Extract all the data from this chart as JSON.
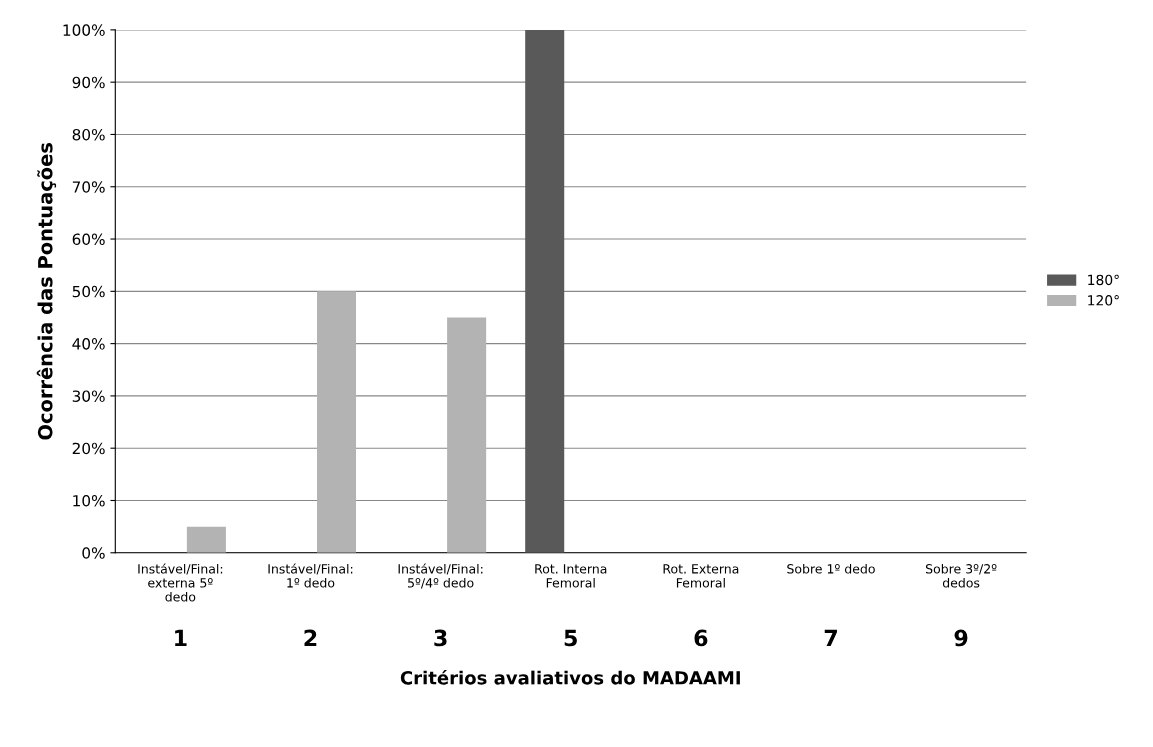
{
  "chart_data": {
    "type": "bar",
    "xlabel": "Critérios avaliativos do MADAAMI",
    "ylabel": "Ocorrência das Pontuações",
    "categories": [
      "Instável/Final:\nexterna 5º\ndedo",
      "Instável/Final:\n1º dedo",
      "Instável/Final:\n5º/4º dedo",
      "Rot. Interna\nFemoral",
      "Rot. Externa\nFemoral",
      "Sobre 1º dedo",
      "Sobre 3º/2º\ndedos"
    ],
    "series": [
      {
        "name": "180°",
        "color": "#595959",
        "values": [
          0,
          0,
          0,
          100,
          0,
          0,
          0
        ]
      },
      {
        "name": "120°",
        "color": "#b3b3b3",
        "values": [
          5,
          50,
          45,
          0,
          0,
          0,
          0
        ]
      }
    ],
    "annotations": [
      "1",
      "2",
      "3",
      "5",
      "6",
      "7",
      "9"
    ],
    "ylim": [
      0,
      100
    ],
    "yticks": [
      {
        "value": 0,
        "label": "0%"
      },
      {
        "value": 10,
        "label": "10%"
      },
      {
        "value": 20,
        "label": "20%"
      },
      {
        "value": 30,
        "label": "30%"
      },
      {
        "value": 40,
        "label": "40%"
      },
      {
        "value": 50,
        "label": "50%"
      },
      {
        "value": 60,
        "label": "60%"
      },
      {
        "value": 70,
        "label": "70%"
      },
      {
        "value": 80,
        "label": "80%"
      },
      {
        "value": 90,
        "label": "90%"
      },
      {
        "value": 100,
        "label": "100%"
      }
    ],
    "grid": "y",
    "legend": "right"
  }
}
